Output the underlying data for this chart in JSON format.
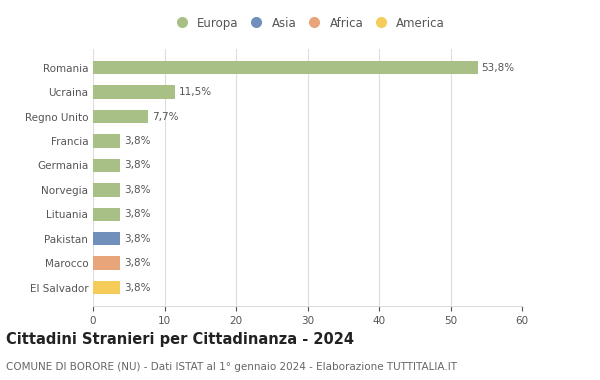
{
  "categories": [
    "El Salvador",
    "Marocco",
    "Pakistan",
    "Lituania",
    "Norvegia",
    "Germania",
    "Francia",
    "Regno Unito",
    "Ucraina",
    "Romania"
  ],
  "values": [
    3.8,
    3.8,
    3.8,
    3.8,
    3.8,
    3.8,
    3.8,
    7.7,
    11.5,
    53.8
  ],
  "labels": [
    "3,8%",
    "3,8%",
    "3,8%",
    "3,8%",
    "3,8%",
    "3,8%",
    "3,8%",
    "7,7%",
    "11,5%",
    "53,8%"
  ],
  "bar_colors": [
    "#f5cc5a",
    "#e8a57a",
    "#7090bb",
    "#a8bf85",
    "#a8bf85",
    "#a8bf85",
    "#a8bf85",
    "#a8bf85",
    "#a8bf85",
    "#a8bf85"
  ],
  "legend_labels": [
    "Europa",
    "Asia",
    "Africa",
    "America"
  ],
  "legend_colors": [
    "#a8bf85",
    "#7090bb",
    "#e8a57a",
    "#f5cc5a"
  ],
  "title": "Cittadini Stranieri per Cittadinanza - 2024",
  "subtitle": "COMUNE DI BORORE (NU) - Dati ISTAT al 1° gennaio 2024 - Elaborazione TUTTITALIA.IT",
  "xlim": [
    0,
    60
  ],
  "xticks": [
    0,
    10,
    20,
    30,
    40,
    50,
    60
  ],
  "background_color": "#ffffff",
  "grid_color": "#dddddd",
  "bar_height": 0.55,
  "title_fontsize": 10.5,
  "subtitle_fontsize": 7.5,
  "label_fontsize": 7.5,
  "tick_fontsize": 7.5,
  "legend_fontsize": 8.5
}
